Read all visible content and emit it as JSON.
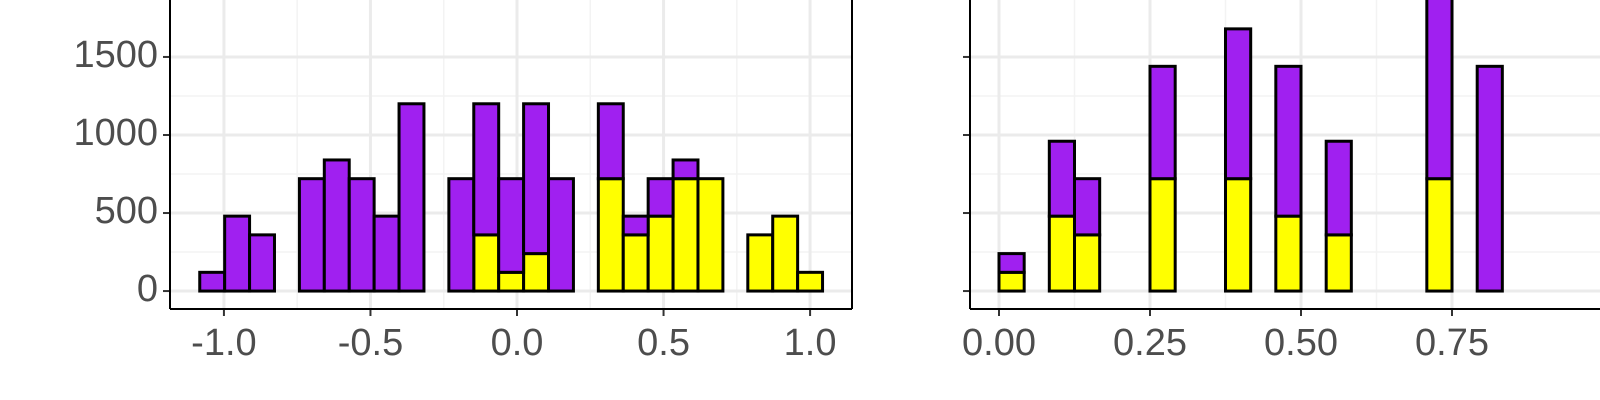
{
  "chart_data": [
    {
      "type": "histogram",
      "bins": [
        -1.0825,
        -0.9975,
        -0.9125,
        -0.8275,
        -0.7425,
        -0.6575,
        -0.5725,
        -0.4875,
        -0.4025,
        -0.3175,
        -0.2325,
        -0.1475,
        -0.0625,
        0.0225,
        0.1075,
        0.1925,
        0.2775,
        0.3625,
        0.4475,
        0.5325,
        0.6175,
        0.7025,
        0.7875,
        0.8725,
        0.9575,
        1.0425
      ],
      "series": [
        {
          "color": "#ffff00",
          "values": [
            0,
            0,
            0,
            0,
            0,
            0,
            0,
            0,
            0,
            0,
            0,
            360,
            120,
            240,
            0,
            0,
            720,
            360,
            480,
            720,
            720,
            0,
            360,
            480,
            120
          ]
        },
        {
          "color": "#a020f0",
          "values": [
            120,
            480,
            360,
            0,
            720,
            840,
            720,
            480,
            1200,
            0,
            720,
            840,
            600,
            960,
            720,
            0,
            480,
            120,
            240,
            120,
            0,
            0,
            0,
            0,
            0
          ]
        }
      ],
      "xlim": [
        -1.184,
        1.143
      ],
      "xticks": [
        {
          "value": -1.0,
          "label": "-1.0"
        },
        -0.5,
        {
          "value": 0.0,
          "label": "0.0"
        },
        0.5,
        {
          "value": 1.0,
          "label": "1.0"
        }
      ],
      "ylim": [
        -115,
        1865
      ],
      "yticks": [
        0,
        500,
        1000,
        1500
      ],
      "grid": true
    },
    {
      "type": "histogram",
      "bins": [
        0,
        0.0417,
        0.0833,
        0.125,
        0.1667,
        0.2083,
        0.25,
        0.2917,
        0.3333,
        0.375,
        0.4167,
        0.4583,
        0.5,
        0.5417,
        0.5833,
        0.625,
        0.6667,
        0.7083,
        0.75,
        0.7917,
        0.8333,
        0.875,
        0.9167,
        0.9583,
        1
      ],
      "series": [
        {
          "color": "#ffff00",
          "values": [
            120,
            0,
            480,
            360,
            0,
            0,
            720,
            0,
            0,
            720,
            0,
            480,
            0,
            360,
            0,
            0,
            0,
            720,
            0,
            0,
            0,
            0,
            0,
            0
          ]
        },
        {
          "color": "#a020f0",
          "values": [
            120,
            0,
            480,
            360,
            0,
            0,
            720,
            0,
            0,
            960,
            0,
            960,
            0,
            600,
            0,
            0,
            0,
            1200,
            0,
            1440,
            0,
            0,
            0,
            0
          ]
        }
      ],
      "xlim": [
        -0.048,
        0.995
      ],
      "xticks": [
        {
          "value": 0,
          "label": "0.00"
        },
        0.25,
        {
          "value": 0.5,
          "label": "0.50"
        },
        0.75
      ],
      "ylim": [
        -115,
        1865
      ],
      "yticks": [
        0,
        500,
        1000,
        1500
      ],
      "grid": true
    }
  ]
}
